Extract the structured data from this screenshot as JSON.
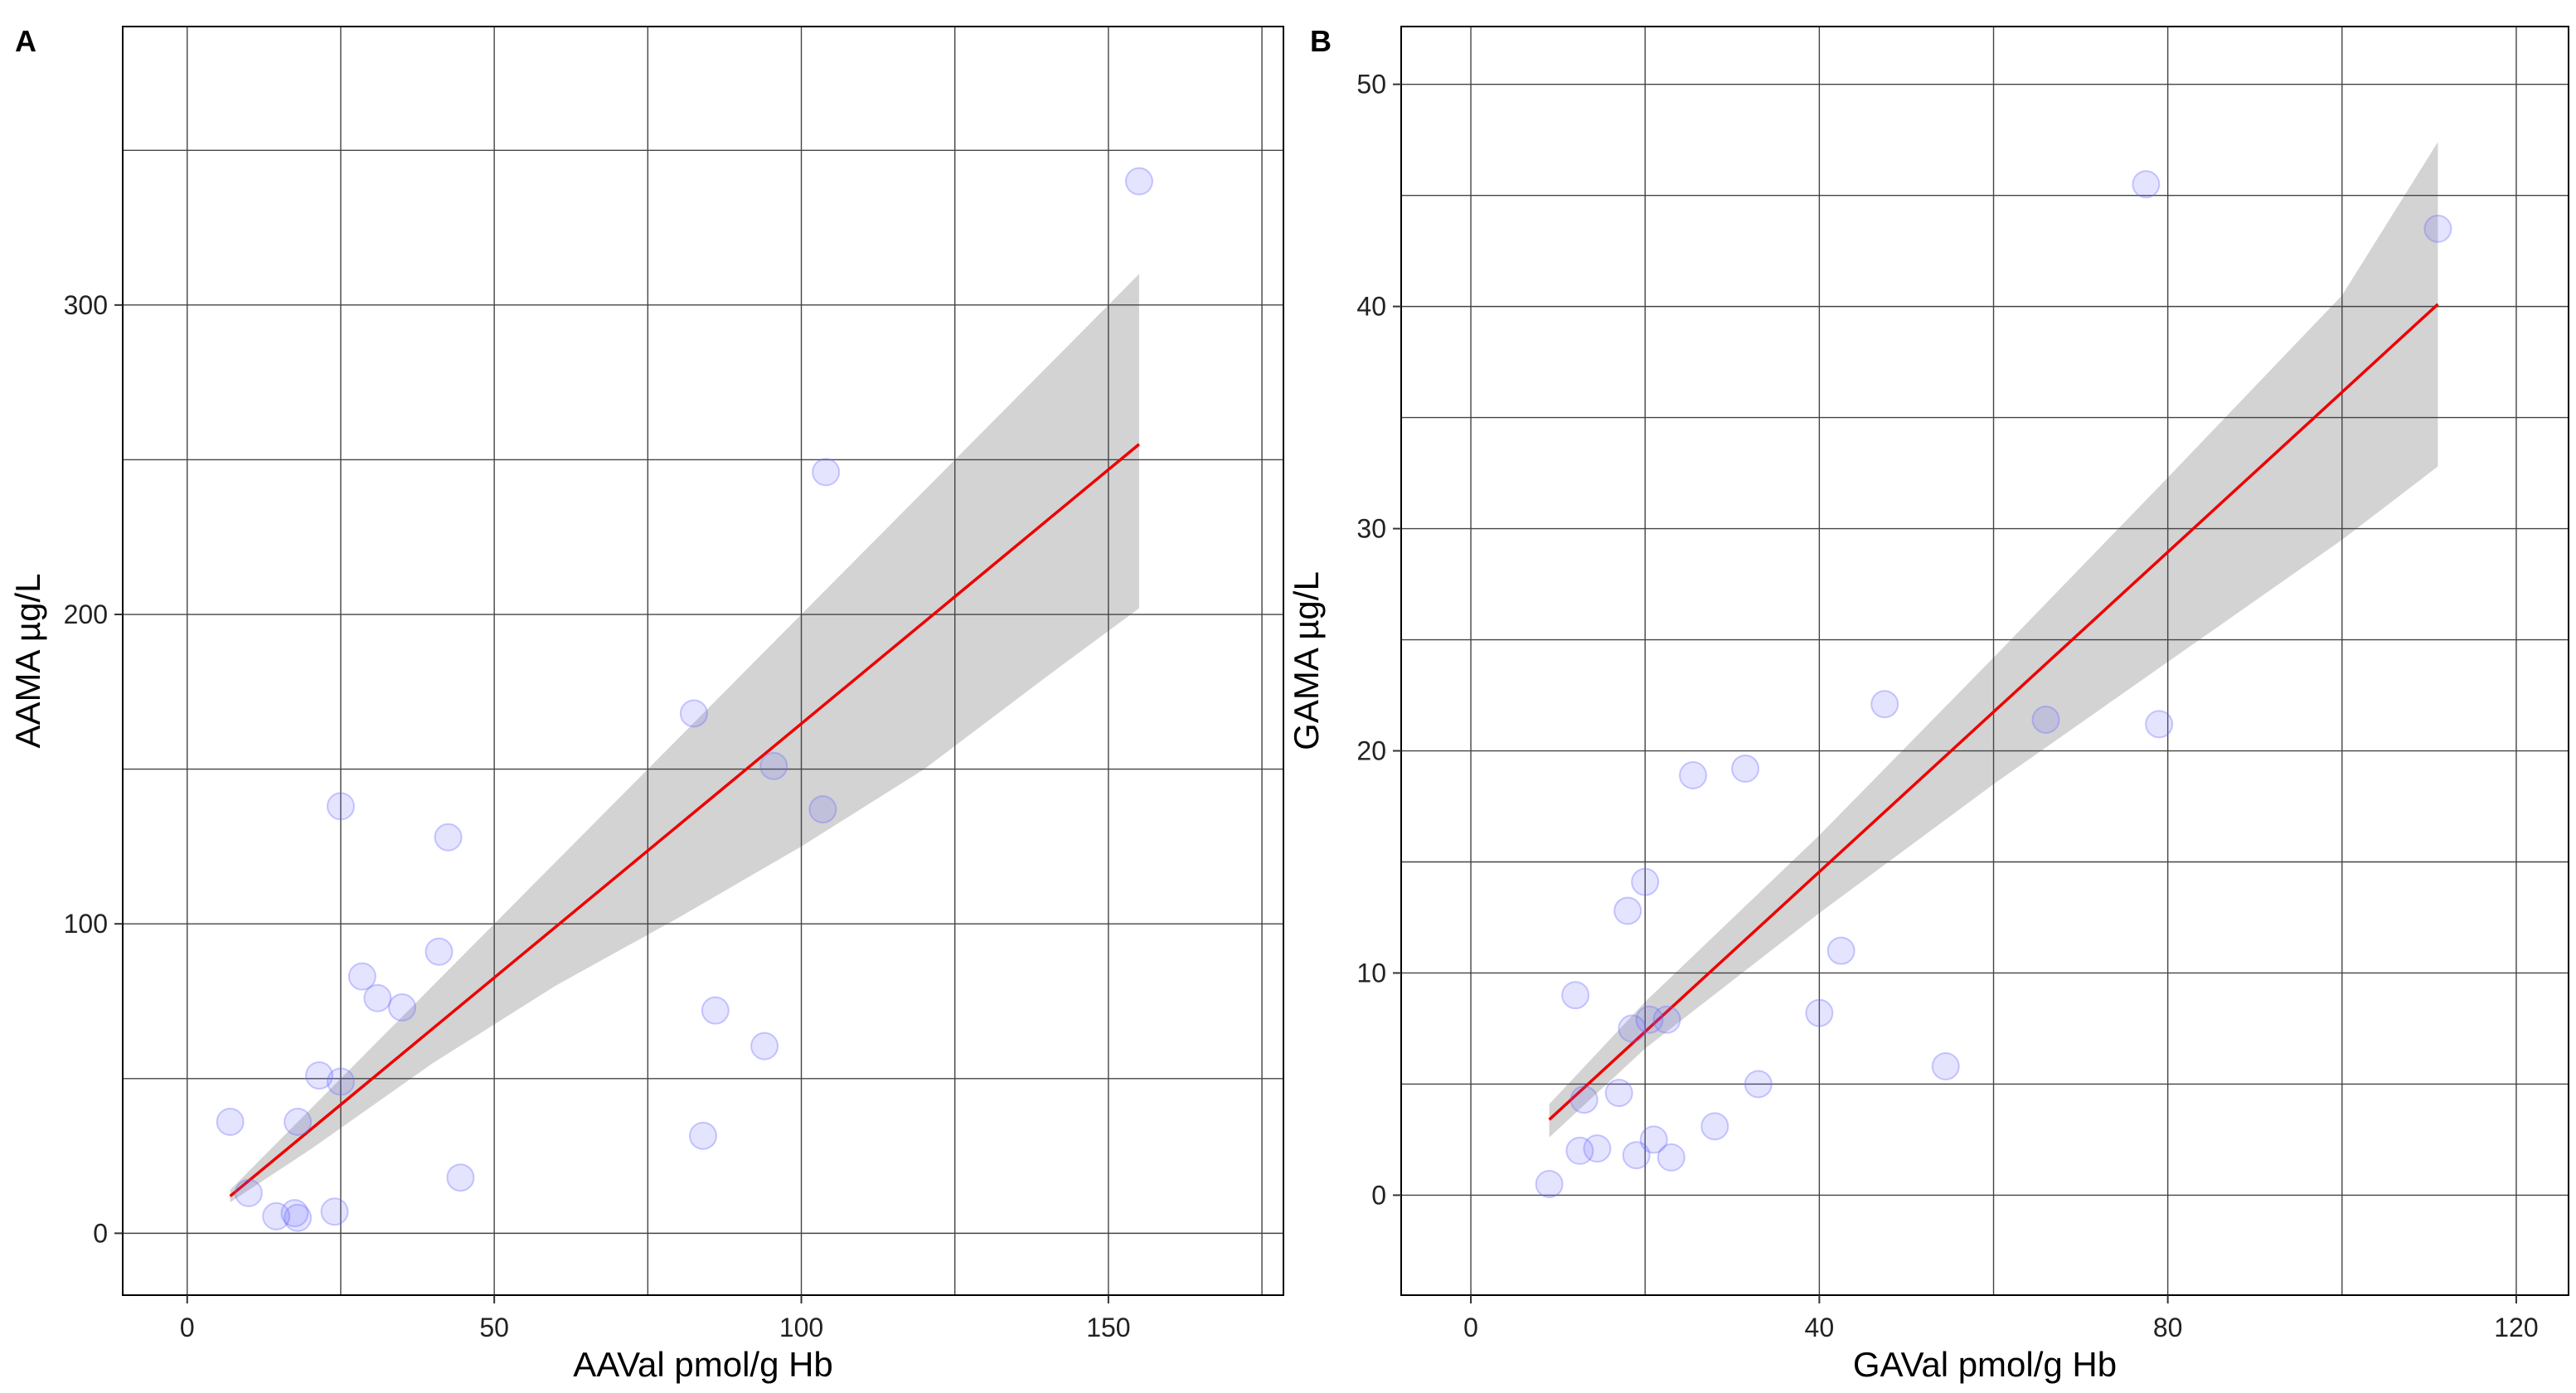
{
  "chart_data": [
    {
      "panel_label": "A",
      "type": "scatter",
      "xlabel": "AAVal pmol/g Hb",
      "ylabel": "AAMA µg/L",
      "xlim": [
        -10.5,
        178.5
      ],
      "ylim": [
        -20,
        390
      ],
      "xticks": [
        0,
        50,
        100,
        150
      ],
      "xtick_labels": [
        "0",
        "50",
        "100",
        "150"
      ],
      "yticks": [
        0,
        100,
        200,
        300
      ],
      "ytick_labels": [
        "0",
        "100",
        "200",
        "300"
      ],
      "minor_xgrid": [
        25,
        75,
        125,
        175
      ],
      "minor_ygrid": [
        50,
        150,
        250,
        350
      ],
      "grid": true,
      "points": [
        {
          "x": 7,
          "y": 36
        },
        {
          "x": 10,
          "y": 13
        },
        {
          "x": 14.5,
          "y": 5.5
        },
        {
          "x": 17.5,
          "y": 6.5
        },
        {
          "x": 18,
          "y": 5
        },
        {
          "x": 18,
          "y": 36
        },
        {
          "x": 21.5,
          "y": 51
        },
        {
          "x": 24,
          "y": 7
        },
        {
          "x": 25,
          "y": 49
        },
        {
          "x": 25,
          "y": 138
        },
        {
          "x": 28.5,
          "y": 83
        },
        {
          "x": 31,
          "y": 76
        },
        {
          "x": 35,
          "y": 73
        },
        {
          "x": 41,
          "y": 91
        },
        {
          "x": 42.5,
          "y": 128
        },
        {
          "x": 44.5,
          "y": 18
        },
        {
          "x": 82.5,
          "y": 168
        },
        {
          "x": 84,
          "y": 31.5
        },
        {
          "x": 86,
          "y": 72
        },
        {
          "x": 94,
          "y": 60.5
        },
        {
          "x": 95.5,
          "y": 151
        },
        {
          "x": 103.5,
          "y": 137
        },
        {
          "x": 104,
          "y": 246
        },
        {
          "x": 155,
          "y": 340
        }
      ],
      "fit_line": {
        "x": [
          7,
          155
        ],
        "y": [
          12,
          255
        ]
      },
      "confidence_band": {
        "x": [
          7,
          20,
          40,
          60,
          80,
          100,
          120,
          140,
          155
        ],
        "lower": [
          10,
          27,
          55,
          80,
          102,
          125,
          150,
          180,
          202
        ],
        "upper": [
          14,
          40,
          80,
          120,
          160,
          200,
          240,
          280,
          310
        ]
      },
      "point_color": "#6a6aff",
      "line_color": "#ee0000",
      "band_color": "#d3d3d3"
    },
    {
      "panel_label": "B",
      "type": "scatter",
      "xlabel": "GAVal pmol/g Hb",
      "ylabel": "GAMA µg/L",
      "xlim": [
        -8,
        126
      ],
      "ylim": [
        -4.5,
        52.6
      ],
      "xticks": [
        0,
        40,
        80,
        120
      ],
      "xtick_labels": [
        "0",
        "40",
        "80",
        "120"
      ],
      "yticks": [
        0,
        10,
        20,
        30,
        40,
        50
      ],
      "ytick_labels": [
        "0",
        "10",
        "20",
        "30",
        "40",
        "50"
      ],
      "minor_xgrid": [
        20,
        60,
        100
      ],
      "minor_ygrid": [
        5,
        15,
        25,
        35,
        45
      ],
      "grid": true,
      "points": [
        {
          "x": 9,
          "y": 0.5
        },
        {
          "x": 12,
          "y": 9
        },
        {
          "x": 12.5,
          "y": 2
        },
        {
          "x": 13,
          "y": 4.3
        },
        {
          "x": 14.5,
          "y": 2.1
        },
        {
          "x": 17,
          "y": 4.6
        },
        {
          "x": 18,
          "y": 12.8
        },
        {
          "x": 18.5,
          "y": 7.5
        },
        {
          "x": 19,
          "y": 1.8
        },
        {
          "x": 20,
          "y": 14.1
        },
        {
          "x": 20.5,
          "y": 7.9
        },
        {
          "x": 21,
          "y": 2.5
        },
        {
          "x": 22.5,
          "y": 7.9
        },
        {
          "x": 23,
          "y": 1.7
        },
        {
          "x": 25.5,
          "y": 18.9
        },
        {
          "x": 28,
          "y": 3.1
        },
        {
          "x": 31.5,
          "y": 19.2
        },
        {
          "x": 33,
          "y": 5
        },
        {
          "x": 40,
          "y": 8.2
        },
        {
          "x": 42.5,
          "y": 11
        },
        {
          "x": 47.5,
          "y": 22.1
        },
        {
          "x": 54.5,
          "y": 5.8
        },
        {
          "x": 66,
          "y": 21.4
        },
        {
          "x": 77.5,
          "y": 45.5
        },
        {
          "x": 79,
          "y": 21.2
        },
        {
          "x": 111,
          "y": 43.5
        }
      ],
      "fit_line": {
        "x": [
          9,
          111
        ],
        "y": [
          3.4,
          40.1
        ]
      },
      "confidence_band": {
        "x": [
          9,
          20,
          40,
          60,
          80,
          100,
          111
        ],
        "lower": [
          2.6,
          6.6,
          12.7,
          18.5,
          24,
          29.5,
          32.8
        ],
        "upper": [
          4.1,
          8.7,
          16.2,
          24.2,
          32.3,
          40.5,
          47.4
        ]
      },
      "point_color": "#6a6aff",
      "line_color": "#ee0000",
      "band_color": "#d3d3d3"
    }
  ]
}
